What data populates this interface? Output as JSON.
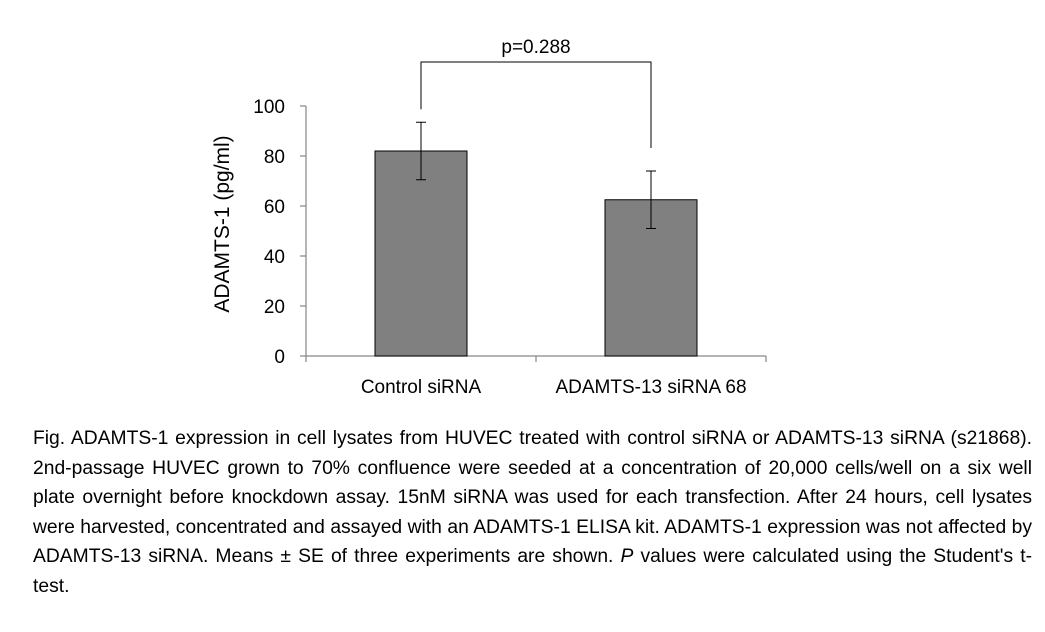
{
  "chart_data": {
    "type": "bar",
    "categories": [
      "Control siRNA",
      "ADAMTS-13 siRNA 68"
    ],
    "values": [
      82,
      62.5
    ],
    "error_bars": [
      11.5,
      11.5
    ],
    "ylabel": "ADAMTS-1 (pg/ml)",
    "xlabel": "",
    "ylim": [
      0,
      100
    ],
    "yticks": [
      0,
      20,
      40,
      60,
      80,
      100
    ],
    "grid": false,
    "bar_color": "#808080",
    "significance": {
      "label": "p=0.288",
      "between": [
        "Control siRNA",
        "ADAMTS-13 siRNA 68"
      ]
    }
  },
  "caption": {
    "part1": "Fig. ADAMTS-1 expression in cell lysates from HUVEC treated with control siRNA or ADAMTS-13 siRNA (s21868). 2nd-passage HUVEC grown to 70% confluence were seeded at a concentration of 20,000 cells/well on a six well plate overnight before knockdown assay. 15nM siRNA was used for each transfection. After 24 hours, cell lysates were harvested, concentrated and assayed with an ADAMTS-1 ELISA kit. ADAMTS-1 expression was not affected by ADAMTS-13 siRNA. Means ± SE of three experiments are shown. ",
    "p_italic": "P",
    "part2": " values were calculated using the Student's t-test."
  }
}
